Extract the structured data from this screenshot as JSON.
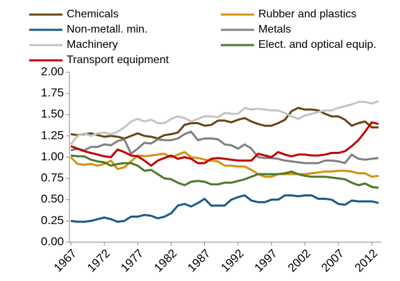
{
  "chart_data": {
    "type": "line",
    "x": [
      1967,
      1968,
      1969,
      1970,
      1971,
      1972,
      1973,
      1974,
      1975,
      1976,
      1977,
      1978,
      1979,
      1980,
      1981,
      1982,
      1983,
      1984,
      1985,
      1986,
      1987,
      1988,
      1989,
      1990,
      1991,
      1992,
      1993,
      1994,
      1995,
      1996,
      1997,
      1998,
      1999,
      2000,
      2001,
      2002,
      2003,
      2004,
      2005,
      2006,
      2007,
      2008,
      2009,
      2010,
      2011,
      2012,
      2013
    ],
    "xlim": [
      1967,
      2013
    ],
    "xticks": [
      1967,
      1972,
      1977,
      1982,
      1987,
      1992,
      1997,
      2002,
      2007,
      2012
    ],
    "ylim": [
      0,
      2
    ],
    "yticks": [
      {
        "value": 0,
        "label": "0.00"
      },
      {
        "value": 0.25,
        "label": "0.25"
      },
      {
        "value": 0.5,
        "label": "0.50"
      },
      {
        "value": 0.75,
        "label": "0.75"
      },
      {
        "value": 1,
        "label": "1.00"
      },
      {
        "value": 1.25,
        "label": "1.25"
      },
      {
        "value": 1.5,
        "label": "1.50"
      },
      {
        "value": 1.75,
        "label": "1.75"
      },
      {
        "value": 2,
        "label": "2.00"
      }
    ],
    "grid": false,
    "legend": "top",
    "series": [
      {
        "name": "Chemicals",
        "color": "#6b4513",
        "values": [
          1.27,
          1.26,
          1.27,
          1.28,
          1.26,
          1.24,
          1.25,
          1.24,
          1.22,
          1.25,
          1.28,
          1.25,
          1.24,
          1.22,
          1.26,
          1.27,
          1.29,
          1.38,
          1.4,
          1.4,
          1.37,
          1.38,
          1.43,
          1.43,
          1.41,
          1.44,
          1.46,
          1.42,
          1.39,
          1.37,
          1.37,
          1.4,
          1.44,
          1.54,
          1.58,
          1.56,
          1.56,
          1.55,
          1.51,
          1.48,
          1.48,
          1.44,
          1.37,
          1.4,
          1.42,
          1.35,
          1.35
        ]
      },
      {
        "name": "Rubber and plastics",
        "color": "#d4900f",
        "values": [
          1.0,
          0.92,
          0.91,
          0.92,
          0.9,
          0.92,
          0.96,
          0.86,
          0.88,
          0.95,
          1.02,
          1.01,
          1.02,
          1.03,
          1.04,
          1.0,
          1.03,
          1.06,
          1.0,
          0.99,
          0.97,
          0.96,
          0.95,
          0.9,
          0.9,
          0.89,
          0.89,
          0.85,
          0.8,
          0.77,
          0.77,
          0.8,
          0.8,
          0.8,
          0.8,
          0.8,
          0.81,
          0.82,
          0.83,
          0.83,
          0.84,
          0.84,
          0.83,
          0.81,
          0.81,
          0.77,
          0.78
        ]
      },
      {
        "name": "Non-metall. min.",
        "color": "#1a5a88",
        "values": [
          0.25,
          0.24,
          0.24,
          0.25,
          0.27,
          0.29,
          0.27,
          0.24,
          0.25,
          0.3,
          0.3,
          0.32,
          0.31,
          0.28,
          0.3,
          0.34,
          0.43,
          0.45,
          0.42,
          0.46,
          0.51,
          0.43,
          0.43,
          0.43,
          0.5,
          0.53,
          0.55,
          0.49,
          0.47,
          0.47,
          0.5,
          0.5,
          0.55,
          0.55,
          0.54,
          0.55,
          0.55,
          0.51,
          0.51,
          0.5,
          0.45,
          0.44,
          0.49,
          0.48,
          0.48,
          0.48,
          0.46
        ]
      },
      {
        "name": "Metals",
        "color": "#808080",
        "values": [
          1.08,
          1.1,
          1.08,
          1.12,
          1.12,
          1.15,
          1.14,
          1.19,
          1.21,
          1.04,
          1.1,
          1.17,
          1.16,
          1.21,
          1.2,
          1.2,
          1.22,
          1.27,
          1.3,
          1.2,
          1.22,
          1.22,
          1.21,
          1.15,
          1.14,
          1.1,
          1.15,
          1.1,
          1.0,
          0.99,
          0.99,
          0.98,
          0.96,
          0.95,
          0.94,
          0.93,
          0.93,
          0.93,
          0.96,
          0.96,
          0.95,
          0.93,
          1.03,
          0.98,
          0.97,
          0.98,
          0.99
        ]
      },
      {
        "name": "Machinery",
        "color": "#c4c4c4",
        "values": [
          1.15,
          1.25,
          1.28,
          1.25,
          1.28,
          1.29,
          1.27,
          1.3,
          1.35,
          1.42,
          1.45,
          1.42,
          1.44,
          1.4,
          1.4,
          1.45,
          1.48,
          1.46,
          1.42,
          1.45,
          1.48,
          1.48,
          1.47,
          1.52,
          1.51,
          1.51,
          1.58,
          1.56,
          1.57,
          1.56,
          1.55,
          1.55,
          1.52,
          1.48,
          1.45,
          1.49,
          1.51,
          1.53,
          1.55,
          1.55,
          1.58,
          1.6,
          1.62,
          1.65,
          1.65,
          1.63,
          1.66
        ]
      },
      {
        "name": "Elect. and optical equip.",
        "color": "#4a7a2a",
        "values": [
          1.02,
          1.01,
          1.01,
          0.97,
          0.95,
          0.94,
          0.9,
          0.92,
          0.93,
          0.93,
          0.9,
          0.84,
          0.85,
          0.8,
          0.75,
          0.74,
          0.7,
          0.67,
          0.71,
          0.72,
          0.71,
          0.68,
          0.68,
          0.7,
          0.7,
          0.72,
          0.74,
          0.77,
          0.8,
          0.8,
          0.8,
          0.8,
          0.81,
          0.83,
          0.8,
          0.78,
          0.77,
          0.77,
          0.77,
          0.76,
          0.75,
          0.74,
          0.7,
          0.67,
          0.69,
          0.65,
          0.64
        ]
      },
      {
        "name": "Transport equipment",
        "color": "#c00000",
        "values": [
          1.13,
          1.1,
          1.07,
          1.05,
          1.03,
          1.01,
          1.0,
          1.09,
          1.06,
          1.02,
          1.01,
          0.96,
          0.9,
          0.96,
          0.99,
          1.02,
          0.98,
          1.0,
          0.98,
          0.93,
          0.93,
          0.98,
          0.99,
          0.98,
          0.97,
          0.96,
          0.96,
          0.96,
          1.04,
          1.02,
          1.0,
          1.06,
          1.03,
          1.01,
          1.03,
          1.03,
          1.02,
          1.02,
          1.03,
          1.05,
          1.05,
          1.07,
          1.13,
          1.2,
          1.3,
          1.41,
          1.39
        ]
      }
    ]
  }
}
